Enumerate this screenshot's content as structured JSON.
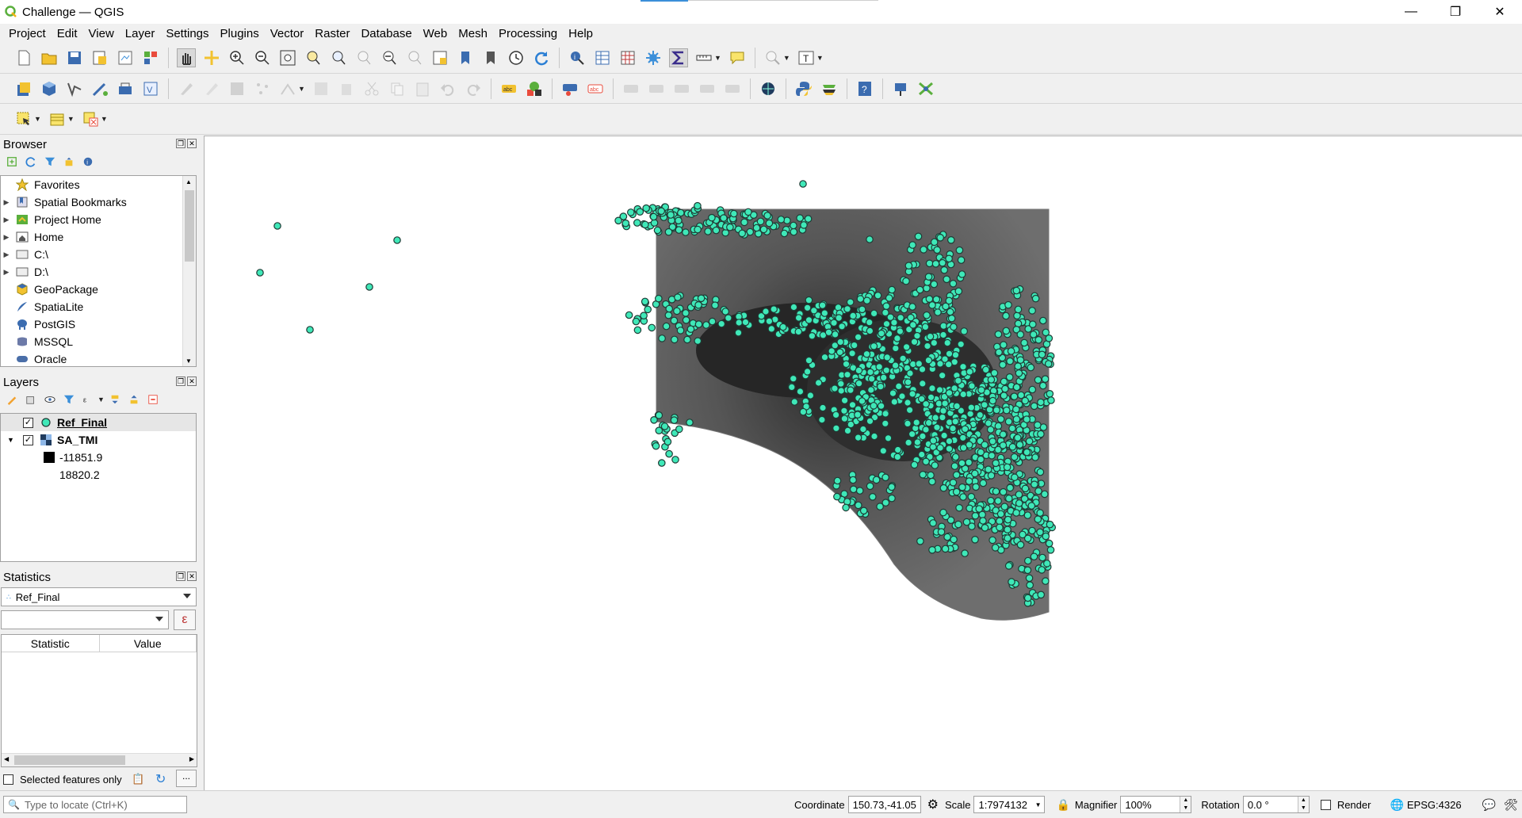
{
  "window": {
    "title": "Challenge — QGIS",
    "minimize": "—",
    "maximize": "❐",
    "close": "✕"
  },
  "menu": [
    "Project",
    "Edit",
    "View",
    "Layer",
    "Settings",
    "Plugins",
    "Vector",
    "Raster",
    "Database",
    "Web",
    "Mesh",
    "Processing",
    "Help"
  ],
  "browser": {
    "title": "Browser",
    "items": [
      {
        "label": "Favorites",
        "icon": "star-icon",
        "expandable": false
      },
      {
        "label": "Spatial Bookmarks",
        "icon": "bookmark-icon",
        "expandable": true
      },
      {
        "label": "Project Home",
        "icon": "project-home-icon",
        "expandable": true
      },
      {
        "label": "Home",
        "icon": "home-icon",
        "expandable": true
      },
      {
        "label": "C:\\",
        "icon": "drive-icon",
        "expandable": true
      },
      {
        "label": "D:\\",
        "icon": "drive-icon",
        "expandable": true
      },
      {
        "label": "GeoPackage",
        "icon": "geopackage-icon",
        "expandable": false
      },
      {
        "label": "SpatiaLite",
        "icon": "spatialite-icon",
        "expandable": false
      },
      {
        "label": "PostGIS",
        "icon": "postgis-icon",
        "expandable": false
      },
      {
        "label": "MSSQL",
        "icon": "mssql-icon",
        "expandable": false
      },
      {
        "label": "Oracle",
        "icon": "oracle-icon",
        "expandable": false
      }
    ]
  },
  "layers": {
    "title": "Layers",
    "items": [
      {
        "name": "Ref_Final",
        "checked": true,
        "selected": true
      },
      {
        "name": "SA_TMI",
        "checked": true,
        "selected": false
      }
    ],
    "legend": {
      "min": "-11851.9",
      "max": "18820.2"
    }
  },
  "statistics": {
    "title": "Statistics",
    "layer": "Ref_Final",
    "field": "",
    "col_statistic": "Statistic",
    "col_value": "Value",
    "selected_only_label": "Selected features only",
    "more_button": "..."
  },
  "status": {
    "locate_placeholder": "Type to locate (Ctrl+K)",
    "coordinate_label": "Coordinate",
    "coordinate_value": "150.73,-41.05",
    "scale_label": "Scale",
    "scale_value": "1:7974132",
    "magnifier_label": "Magnifier",
    "magnifier_value": "100%",
    "rotation_label": "Rotation",
    "rotation_value": "0.0 °",
    "render_label": "Render",
    "crs": "EPSG:4326"
  },
  "colors": {
    "point_fill": "#3fe8b8",
    "point_stroke": "#1f3b35",
    "raster_light": "#8a8a8a",
    "raster_dark": "#2b2b2b"
  }
}
